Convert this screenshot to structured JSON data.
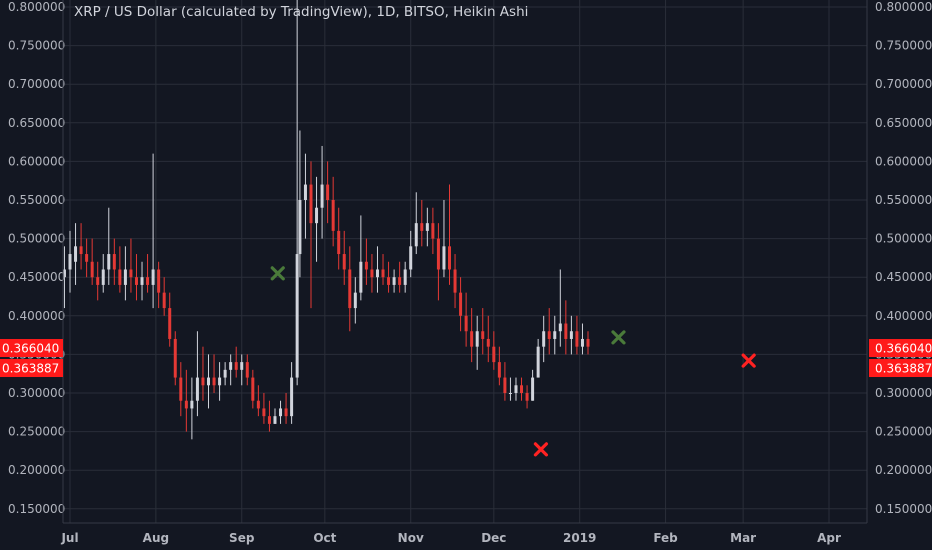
{
  "title": "XRP / US Dollar (calculated by TradingView), 1D, BITSO, Heikin Ashi",
  "colors": {
    "background": "#131722",
    "grid": "#2a2e39",
    "up": "#d1d4dc",
    "down": "#e53935",
    "up_alt": "#26a69a",
    "tag": "#ff1a1a",
    "marker_green": "#4a7a3a",
    "marker_red": "#ff2222"
  },
  "chart_data": {
    "type": "candlestick",
    "title": "XRP / US Dollar (calculated by TradingView), 1D, BITSO, Heikin Ashi",
    "ylim": [
      0.13,
      0.8
    ],
    "y_ticks": [
      "0.800000",
      "0.750000",
      "0.700000",
      "0.650000",
      "0.600000",
      "0.550000",
      "0.500000",
      "0.450000",
      "0.400000",
      "0.350000",
      "0.300000",
      "0.250000",
      "0.200000",
      "0.150000"
    ],
    "x_labels": [
      "Jul",
      "Aug",
      "Sep",
      "Oct",
      "Nov",
      "Dec",
      "2019",
      "Feb",
      "Mar",
      "Apr"
    ],
    "price_tags": [
      "0.366040",
      "0.363887"
    ],
    "grid": true,
    "markers": [
      {
        "type": "x",
        "color": "green",
        "date": "2018-09-14",
        "value": 0.455
      },
      {
        "type": "x",
        "color": "green",
        "date": "2019-01-15",
        "value": 0.372
      },
      {
        "type": "x",
        "color": "red",
        "date": "2018-12-18",
        "value": 0.227
      },
      {
        "type": "x",
        "color": "red",
        "date": "2019-03-03",
        "value": 0.342
      }
    ],
    "series": [
      {
        "date": "2018-06-29",
        "o": 0.45,
        "h": 0.49,
        "l": 0.41,
        "c": 0.46
      },
      {
        "date": "2018-07-01",
        "o": 0.46,
        "h": 0.51,
        "l": 0.43,
        "c": 0.48
      },
      {
        "date": "2018-07-03",
        "o": 0.47,
        "h": 0.52,
        "l": 0.44,
        "c": 0.49
      },
      {
        "date": "2018-07-05",
        "o": 0.49,
        "h": 0.52,
        "l": 0.46,
        "c": 0.48
      },
      {
        "date": "2018-07-07",
        "o": 0.48,
        "h": 0.5,
        "l": 0.45,
        "c": 0.47
      },
      {
        "date": "2018-07-09",
        "o": 0.47,
        "h": 0.5,
        "l": 0.44,
        "c": 0.45
      },
      {
        "date": "2018-07-11",
        "o": 0.45,
        "h": 0.47,
        "l": 0.42,
        "c": 0.44
      },
      {
        "date": "2018-07-13",
        "o": 0.44,
        "h": 0.48,
        "l": 0.43,
        "c": 0.46
      },
      {
        "date": "2018-07-15",
        "o": 0.46,
        "h": 0.54,
        "l": 0.44,
        "c": 0.48
      },
      {
        "date": "2018-07-17",
        "o": 0.48,
        "h": 0.5,
        "l": 0.44,
        "c": 0.46
      },
      {
        "date": "2018-07-19",
        "o": 0.46,
        "h": 0.49,
        "l": 0.43,
        "c": 0.44
      },
      {
        "date": "2018-07-21",
        "o": 0.44,
        "h": 0.49,
        "l": 0.42,
        "c": 0.46
      },
      {
        "date": "2018-07-23",
        "o": 0.46,
        "h": 0.5,
        "l": 0.43,
        "c": 0.45
      },
      {
        "date": "2018-07-25",
        "o": 0.45,
        "h": 0.48,
        "l": 0.42,
        "c": 0.44
      },
      {
        "date": "2018-07-27",
        "o": 0.44,
        "h": 0.47,
        "l": 0.42,
        "c": 0.45
      },
      {
        "date": "2018-07-29",
        "o": 0.45,
        "h": 0.48,
        "l": 0.43,
        "c": 0.44
      },
      {
        "date": "2018-07-31",
        "o": 0.44,
        "h": 0.61,
        "l": 0.41,
        "c": 0.46
      },
      {
        "date": "2018-08-02",
        "o": 0.46,
        "h": 0.47,
        "l": 0.41,
        "c": 0.43
      },
      {
        "date": "2018-08-04",
        "o": 0.43,
        "h": 0.45,
        "l": 0.4,
        "c": 0.41
      },
      {
        "date": "2018-08-06",
        "o": 0.41,
        "h": 0.43,
        "l": 0.36,
        "c": 0.37
      },
      {
        "date": "2018-08-08",
        "o": 0.37,
        "h": 0.38,
        "l": 0.31,
        "c": 0.32
      },
      {
        "date": "2018-08-10",
        "o": 0.32,
        "h": 0.34,
        "l": 0.27,
        "c": 0.29
      },
      {
        "date": "2018-08-12",
        "o": 0.29,
        "h": 0.33,
        "l": 0.25,
        "c": 0.28
      },
      {
        "date": "2018-08-14",
        "o": 0.28,
        "h": 0.32,
        "l": 0.24,
        "c": 0.29
      },
      {
        "date": "2018-08-16",
        "o": 0.29,
        "h": 0.38,
        "l": 0.27,
        "c": 0.32
      },
      {
        "date": "2018-08-18",
        "o": 0.32,
        "h": 0.36,
        "l": 0.29,
        "c": 0.31
      },
      {
        "date": "2018-08-20",
        "o": 0.31,
        "h": 0.35,
        "l": 0.28,
        "c": 0.32
      },
      {
        "date": "2018-08-22",
        "o": 0.32,
        "h": 0.35,
        "l": 0.3,
        "c": 0.31
      },
      {
        "date": "2018-08-24",
        "o": 0.31,
        "h": 0.34,
        "l": 0.29,
        "c": 0.32
      },
      {
        "date": "2018-08-26",
        "o": 0.32,
        "h": 0.34,
        "l": 0.31,
        "c": 0.33
      },
      {
        "date": "2018-08-28",
        "o": 0.33,
        "h": 0.35,
        "l": 0.31,
        "c": 0.34
      },
      {
        "date": "2018-08-30",
        "o": 0.34,
        "h": 0.36,
        "l": 0.32,
        "c": 0.33
      },
      {
        "date": "2018-09-01",
        "o": 0.33,
        "h": 0.35,
        "l": 0.31,
        "c": 0.34
      },
      {
        "date": "2018-09-03",
        "o": 0.34,
        "h": 0.35,
        "l": 0.31,
        "c": 0.32
      },
      {
        "date": "2018-09-05",
        "o": 0.32,
        "h": 0.33,
        "l": 0.28,
        "c": 0.29
      },
      {
        "date": "2018-09-07",
        "o": 0.29,
        "h": 0.31,
        "l": 0.27,
        "c": 0.28
      },
      {
        "date": "2018-09-09",
        "o": 0.28,
        "h": 0.3,
        "l": 0.26,
        "c": 0.27
      },
      {
        "date": "2018-09-11",
        "o": 0.27,
        "h": 0.29,
        "l": 0.25,
        "c": 0.26
      },
      {
        "date": "2018-09-13",
        "o": 0.26,
        "h": 0.28,
        "l": 0.26,
        "c": 0.27
      },
      {
        "date": "2018-09-15",
        "o": 0.27,
        "h": 0.29,
        "l": 0.26,
        "c": 0.28
      },
      {
        "date": "2018-09-17",
        "o": 0.28,
        "h": 0.3,
        "l": 0.26,
        "c": 0.27
      },
      {
        "date": "2018-09-19",
        "o": 0.27,
        "h": 0.34,
        "l": 0.26,
        "c": 0.32
      },
      {
        "date": "2018-09-21",
        "o": 0.32,
        "h": 0.82,
        "l": 0.31,
        "c": 0.48
      },
      {
        "date": "2018-09-22",
        "o": 0.48,
        "h": 0.64,
        "l": 0.45,
        "c": 0.55
      },
      {
        "date": "2018-09-24",
        "o": 0.55,
        "h": 0.61,
        "l": 0.5,
        "c": 0.57
      },
      {
        "date": "2018-09-26",
        "o": 0.57,
        "h": 0.6,
        "l": 0.41,
        "c": 0.52
      },
      {
        "date": "2018-09-28",
        "o": 0.52,
        "h": 0.58,
        "l": 0.47,
        "c": 0.54
      },
      {
        "date": "2018-09-30",
        "o": 0.54,
        "h": 0.62,
        "l": 0.5,
        "c": 0.57
      },
      {
        "date": "2018-10-02",
        "o": 0.57,
        "h": 0.6,
        "l": 0.52,
        "c": 0.55
      },
      {
        "date": "2018-10-04",
        "o": 0.55,
        "h": 0.58,
        "l": 0.49,
        "c": 0.51
      },
      {
        "date": "2018-10-06",
        "o": 0.51,
        "h": 0.54,
        "l": 0.46,
        "c": 0.48
      },
      {
        "date": "2018-10-08",
        "o": 0.48,
        "h": 0.51,
        "l": 0.44,
        "c": 0.46
      },
      {
        "date": "2018-10-10",
        "o": 0.46,
        "h": 0.49,
        "l": 0.38,
        "c": 0.41
      },
      {
        "date": "2018-10-12",
        "o": 0.41,
        "h": 0.45,
        "l": 0.39,
        "c": 0.43
      },
      {
        "date": "2018-10-14",
        "o": 0.43,
        "h": 0.53,
        "l": 0.42,
        "c": 0.47
      },
      {
        "date": "2018-10-16",
        "o": 0.47,
        "h": 0.5,
        "l": 0.44,
        "c": 0.46
      },
      {
        "date": "2018-10-18",
        "o": 0.46,
        "h": 0.48,
        "l": 0.43,
        "c": 0.45
      },
      {
        "date": "2018-10-20",
        "o": 0.45,
        "h": 0.49,
        "l": 0.43,
        "c": 0.46
      },
      {
        "date": "2018-10-22",
        "o": 0.46,
        "h": 0.48,
        "l": 0.44,
        "c": 0.45
      },
      {
        "date": "2018-10-24",
        "o": 0.45,
        "h": 0.47,
        "l": 0.43,
        "c": 0.44
      },
      {
        "date": "2018-10-26",
        "o": 0.44,
        "h": 0.46,
        "l": 0.43,
        "c": 0.45
      },
      {
        "date": "2018-10-28",
        "o": 0.45,
        "h": 0.47,
        "l": 0.43,
        "c": 0.44
      },
      {
        "date": "2018-10-30",
        "o": 0.44,
        "h": 0.47,
        "l": 0.43,
        "c": 0.46
      },
      {
        "date": "2018-11-01",
        "o": 0.46,
        "h": 0.51,
        "l": 0.45,
        "c": 0.49
      },
      {
        "date": "2018-11-03",
        "o": 0.49,
        "h": 0.56,
        "l": 0.48,
        "c": 0.52
      },
      {
        "date": "2018-11-05",
        "o": 0.52,
        "h": 0.55,
        "l": 0.49,
        "c": 0.51
      },
      {
        "date": "2018-11-07",
        "o": 0.51,
        "h": 0.54,
        "l": 0.49,
        "c": 0.52
      },
      {
        "date": "2018-11-09",
        "o": 0.52,
        "h": 0.54,
        "l": 0.48,
        "c": 0.5
      },
      {
        "date": "2018-11-11",
        "o": 0.5,
        "h": 0.52,
        "l": 0.42,
        "c": 0.46
      },
      {
        "date": "2018-11-13",
        "o": 0.46,
        "h": 0.55,
        "l": 0.45,
        "c": 0.49
      },
      {
        "date": "2018-11-15",
        "o": 0.49,
        "h": 0.57,
        "l": 0.44,
        "c": 0.46
      },
      {
        "date": "2018-11-17",
        "o": 0.46,
        "h": 0.48,
        "l": 0.41,
        "c": 0.43
      },
      {
        "date": "2018-11-19",
        "o": 0.43,
        "h": 0.45,
        "l": 0.38,
        "c": 0.4
      },
      {
        "date": "2018-11-21",
        "o": 0.4,
        "h": 0.43,
        "l": 0.36,
        "c": 0.38
      },
      {
        "date": "2018-11-23",
        "o": 0.38,
        "h": 0.41,
        "l": 0.34,
        "c": 0.36
      },
      {
        "date": "2018-11-25",
        "o": 0.36,
        "h": 0.4,
        "l": 0.33,
        "c": 0.38
      },
      {
        "date": "2018-11-27",
        "o": 0.38,
        "h": 0.41,
        "l": 0.35,
        "c": 0.37
      },
      {
        "date": "2018-11-29",
        "o": 0.37,
        "h": 0.4,
        "l": 0.34,
        "c": 0.36
      },
      {
        "date": "2018-12-01",
        "o": 0.36,
        "h": 0.38,
        "l": 0.33,
        "c": 0.34
      },
      {
        "date": "2018-12-03",
        "o": 0.34,
        "h": 0.36,
        "l": 0.31,
        "c": 0.32
      },
      {
        "date": "2018-12-05",
        "o": 0.32,
        "h": 0.34,
        "l": 0.29,
        "c": 0.3
      },
      {
        "date": "2018-12-07",
        "o": 0.3,
        "h": 0.32,
        "l": 0.29,
        "c": 0.3
      },
      {
        "date": "2018-12-09",
        "o": 0.3,
        "h": 0.32,
        "l": 0.29,
        "c": 0.31
      },
      {
        "date": "2018-12-11",
        "o": 0.31,
        "h": 0.32,
        "l": 0.29,
        "c": 0.3
      },
      {
        "date": "2018-12-13",
        "o": 0.3,
        "h": 0.31,
        "l": 0.28,
        "c": 0.29
      },
      {
        "date": "2018-12-15",
        "o": 0.29,
        "h": 0.33,
        "l": 0.29,
        "c": 0.32
      },
      {
        "date": "2018-12-17",
        "o": 0.32,
        "h": 0.37,
        "l": 0.32,
        "c": 0.36
      },
      {
        "date": "2018-12-19",
        "o": 0.36,
        "h": 0.4,
        "l": 0.34,
        "c": 0.38
      },
      {
        "date": "2018-12-21",
        "o": 0.38,
        "h": 0.41,
        "l": 0.35,
        "c": 0.37
      },
      {
        "date": "2018-12-23",
        "o": 0.37,
        "h": 0.4,
        "l": 0.35,
        "c": 0.38
      },
      {
        "date": "2018-12-25",
        "o": 0.38,
        "h": 0.46,
        "l": 0.36,
        "c": 0.39
      },
      {
        "date": "2018-12-27",
        "o": 0.39,
        "h": 0.42,
        "l": 0.35,
        "c": 0.37
      },
      {
        "date": "2018-12-29",
        "o": 0.37,
        "h": 0.4,
        "l": 0.35,
        "c": 0.38
      },
      {
        "date": "2018-12-31",
        "o": 0.38,
        "h": 0.4,
        "l": 0.35,
        "c": 0.36
      },
      {
        "date": "2019-01-02",
        "o": 0.36,
        "h": 0.39,
        "l": 0.35,
        "c": 0.37
      },
      {
        "date": "2019-01-04",
        "o": 0.37,
        "h": 0.38,
        "l": 0.35,
        "c": 0.36
      }
    ]
  }
}
